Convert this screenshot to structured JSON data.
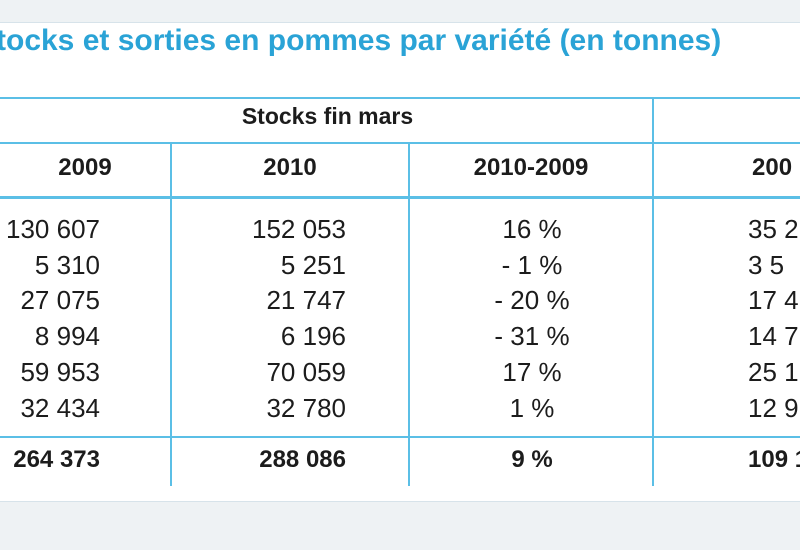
{
  "title": "tocks et sorties en pommes par variété (en tonnes)",
  "group_header": "Stocks fin mars",
  "columns": [
    "2009",
    "2010",
    "2010-2009",
    "200"
  ],
  "rows": [
    [
      "130 607",
      "152 053",
      "16 %",
      "35 2"
    ],
    [
      "5 310",
      "5 251",
      "- 1 %",
      "3 5"
    ],
    [
      "27 075",
      "21 747",
      "- 20 %",
      "17 4"
    ],
    [
      "8 994",
      "6 196",
      "- 31 %",
      "14 7"
    ],
    [
      "59 953",
      "70 059",
      "17 %",
      "25 1"
    ],
    [
      "32 434",
      "32 780",
      "1 %",
      "12 9"
    ]
  ],
  "total": [
    "264 373",
    "288 086",
    "9 %",
    "109 1"
  ],
  "colors": {
    "title": "#2aa3d6",
    "rule": "#5bbfe6"
  }
}
